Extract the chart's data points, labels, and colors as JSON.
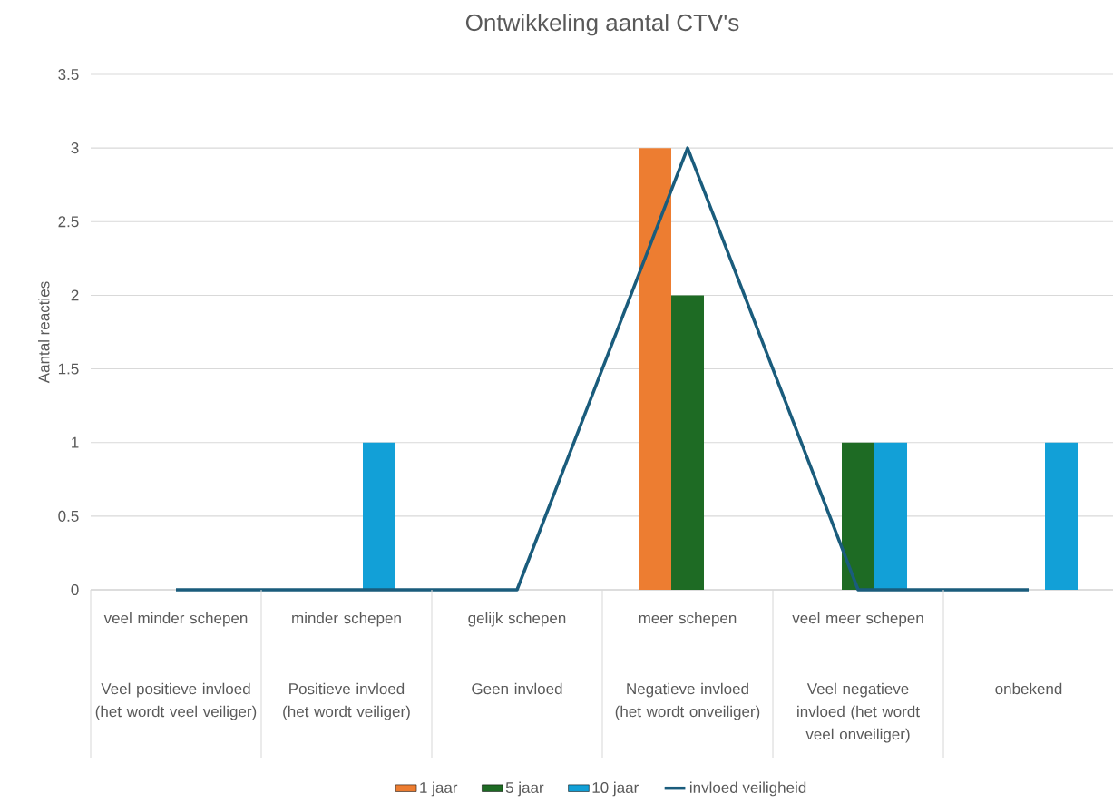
{
  "chart_data": {
    "type": "bar",
    "title": "Ontwikkeling aantal CTV's",
    "ylabel": "Aantal reacties",
    "categories": [
      "Veel positieve invloed (het wordt veel veiliger)",
      "Positieve invloed (het wordt veiliger)",
      "Geen invloed",
      "Negatieve invloed (het wordt onveiliger)",
      "Veel negatieve invloed (het wordt veel onveiliger)",
      "onbekend"
    ],
    "annotations": [
      "veel minder schepen",
      "minder schepen",
      "gelijk schepen",
      "meer schepen",
      "veel meer schepen"
    ],
    "series": [
      {
        "name": "1 jaar",
        "color": "#ed7d31",
        "values": [
          0,
          0,
          0,
          3,
          0,
          0
        ]
      },
      {
        "name": "5 jaar",
        "color": "#1e6b24",
        "values": [
          0,
          0,
          0,
          2,
          1,
          0
        ]
      },
      {
        "name": "10 jaar",
        "color": "#12a0d7",
        "values": [
          0,
          1,
          0,
          0,
          1,
          1
        ]
      },
      {
        "name": "invloed veiligheid",
        "type": "line",
        "color": "#1a5c7c",
        "values": [
          0,
          0,
          0,
          3,
          0,
          0
        ]
      }
    ],
    "ylim": [
      0,
      3.5
    ],
    "yticks": [
      0,
      0.5,
      1,
      1.5,
      2,
      2.5,
      3,
      3.5
    ],
    "grid": "y",
    "legend": "bottom"
  }
}
